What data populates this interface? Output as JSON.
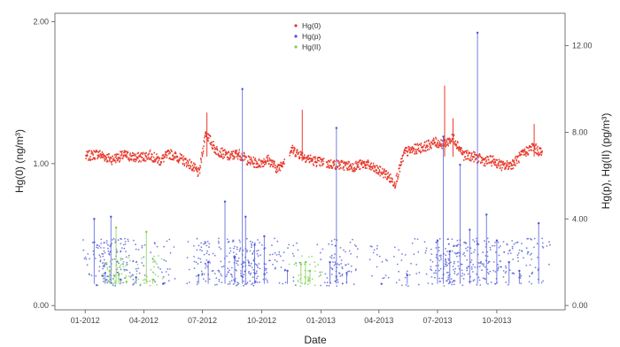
{
  "chart_data": {
    "type": "scatter",
    "title": "",
    "xlabel": "Date",
    "ylabel_left": "Hg(0) (ng/m³)",
    "ylabel_right": "Hg(p), Hg(II) (pg/m³)",
    "x_ticks": [
      "01-2012",
      "04-2012",
      "07-2012",
      "10-2012",
      "01-2013",
      "04-2013",
      "07-2013",
      "10-2013"
    ],
    "x_tick_dates": [
      "2012-01-01",
      "2012-04-01",
      "2012-07-01",
      "2012-10-01",
      "2013-01-01",
      "2013-04-01",
      "2013-07-01",
      "2013-10-01"
    ],
    "xlim": [
      "2011-11-15",
      "2014-01-15"
    ],
    "ylim_left": [
      -0.03,
      2.06
    ],
    "ylim_right": [
      -0.2,
      13.5
    ],
    "y_ticks_left": [
      "0.00",
      "1.00",
      "2.00"
    ],
    "y_ticks_right": [
      "0.00",
      "4.00",
      "8.00",
      "12.00"
    ],
    "legend": {
      "position": "top-center",
      "items": [
        {
          "label": "Hg(0)",
          "color": "#e8382b"
        },
        {
          "label": "Hg(p)",
          "color": "#4a55d8"
        },
        {
          "label": "Hg(II)",
          "color": "#7ccf4a"
        }
      ]
    },
    "grid": false,
    "series": [
      {
        "name": "Hg(0)",
        "axis": "left",
        "color": "#e8382b",
        "data": [
          [
            "2012-01-01",
            1.05
          ],
          [
            "2012-01-20",
            1.07
          ],
          [
            "2012-02-10",
            1.03
          ],
          [
            "2012-03-01",
            1.06
          ],
          [
            "2012-03-20",
            1.04
          ],
          [
            "2012-04-10",
            1.06
          ],
          [
            "2012-04-25",
            1.02
          ],
          [
            "2012-05-10",
            1.07
          ],
          [
            "2012-05-25",
            1.04
          ],
          [
            "2012-06-10",
            1.0
          ],
          [
            "2012-06-25",
            0.93
          ],
          [
            "2012-07-05",
            1.22
          ],
          [
            "2012-07-20",
            1.1
          ],
          [
            "2012-08-10",
            1.05
          ],
          [
            "2012-08-25",
            1.07
          ],
          [
            "2012-09-10",
            1.02
          ],
          [
            "2012-09-25",
            1.0
          ],
          [
            "2012-10-10",
            1.03
          ],
          [
            "2012-10-25",
            0.96
          ],
          [
            "2012-11-15",
            1.1
          ],
          [
            "2012-12-05",
            1.05
          ],
          [
            "2012-12-20",
            1.02
          ],
          [
            "2013-01-10",
            1.0
          ],
          [
            "2013-02-01",
            0.99
          ],
          [
            "2013-02-20",
            0.98
          ],
          [
            "2013-03-10",
            1.0
          ],
          [
            "2013-03-25",
            0.96
          ],
          [
            "2013-04-10",
            0.93
          ],
          [
            "2013-04-25",
            0.86
          ],
          [
            "2013-05-10",
            1.08
          ],
          [
            "2013-05-25",
            1.1
          ],
          [
            "2013-06-10",
            1.12
          ],
          [
            "2013-06-25",
            1.15
          ],
          [
            "2013-07-10",
            1.14
          ],
          [
            "2013-07-25",
            1.18
          ],
          [
            "2013-08-10",
            1.06
          ],
          [
            "2013-08-25",
            1.05
          ],
          [
            "2013-09-10",
            1.02
          ],
          [
            "2013-09-25",
            1.02
          ],
          [
            "2013-10-10",
            0.98
          ],
          [
            "2013-10-25",
            1.0
          ],
          [
            "2013-11-10",
            1.07
          ],
          [
            "2013-11-25",
            1.12
          ],
          [
            "2013-12-10",
            1.07
          ]
        ]
      },
      {
        "name": "Hg(p)",
        "axis": "right",
        "color": "#4a55d8",
        "data": [
          [
            "2012-01-15",
            4.0
          ],
          [
            "2012-02-01",
            1.5
          ],
          [
            "2012-02-10",
            4.1
          ],
          [
            "2012-02-25",
            1.2
          ],
          [
            "2012-03-20",
            1.3
          ],
          [
            "2012-05-01",
            1.0
          ],
          [
            "2012-06-25",
            1.4
          ],
          [
            "2012-07-10",
            2.0
          ],
          [
            "2012-08-05",
            4.8
          ],
          [
            "2012-08-20",
            2.2
          ],
          [
            "2012-09-01",
            10.0
          ],
          [
            "2012-09-06",
            4.1
          ],
          [
            "2012-09-20",
            2.8
          ],
          [
            "2012-10-05",
            3.2
          ],
          [
            "2012-11-10",
            1.6
          ],
          [
            "2013-01-15",
            2.0
          ],
          [
            "2013-01-25",
            8.2
          ],
          [
            "2013-02-10",
            1.5
          ],
          [
            "2013-04-05",
            1.0
          ],
          [
            "2013-05-15",
            1.4
          ],
          [
            "2013-07-01",
            3.0
          ],
          [
            "2013-07-10",
            7.8
          ],
          [
            "2013-07-20",
            2.5
          ],
          [
            "2013-08-05",
            6.5
          ],
          [
            "2013-08-20",
            3.5
          ],
          [
            "2013-09-01",
            12.6
          ],
          [
            "2013-09-15",
            4.2
          ],
          [
            "2013-10-01",
            3.0
          ],
          [
            "2013-10-20",
            2.0
          ],
          [
            "2013-11-05",
            1.6
          ],
          [
            "2013-12-05",
            3.8
          ]
        ]
      },
      {
        "name": "Hg(II)",
        "axis": "right",
        "color": "#7ccf4a",
        "data": [
          [
            "2012-02-08",
            1.6
          ],
          [
            "2012-02-18",
            3.6
          ],
          [
            "2012-02-22",
            1.4
          ],
          [
            "2012-03-05",
            1.1
          ],
          [
            "2012-04-05",
            3.4
          ],
          [
            "2012-04-15",
            1.2
          ],
          [
            "2012-12-01",
            1.9
          ],
          [
            "2012-12-08",
            2.0
          ],
          [
            "2012-12-15",
            1.6
          ]
        ]
      }
    ]
  }
}
